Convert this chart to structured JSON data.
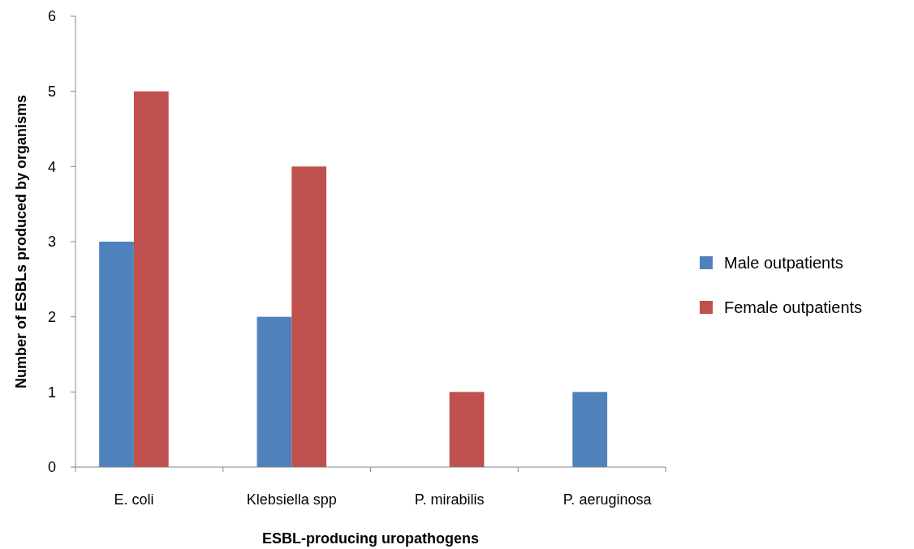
{
  "chart_data": {
    "type": "bar",
    "xlabel": "ESBL-producing  uropathogens",
    "ylabel": "Number of ESBLs produced by organisms",
    "categories": [
      "E. coli",
      "Klebsiella spp",
      "P. mirabilis",
      "P. aeruginosa"
    ],
    "series": [
      {
        "name": "Male outpatients",
        "color": "#4f81bd",
        "values": [
          3,
          2,
          0,
          1
        ]
      },
      {
        "name": "Female outpatients",
        "color": "#c0504d",
        "values": [
          5,
          4,
          1,
          0
        ]
      }
    ],
    "ylim": [
      0,
      6
    ],
    "yticks": [
      0,
      1,
      2,
      3,
      4,
      5,
      6
    ],
    "grid": false,
    "legend": "right"
  }
}
